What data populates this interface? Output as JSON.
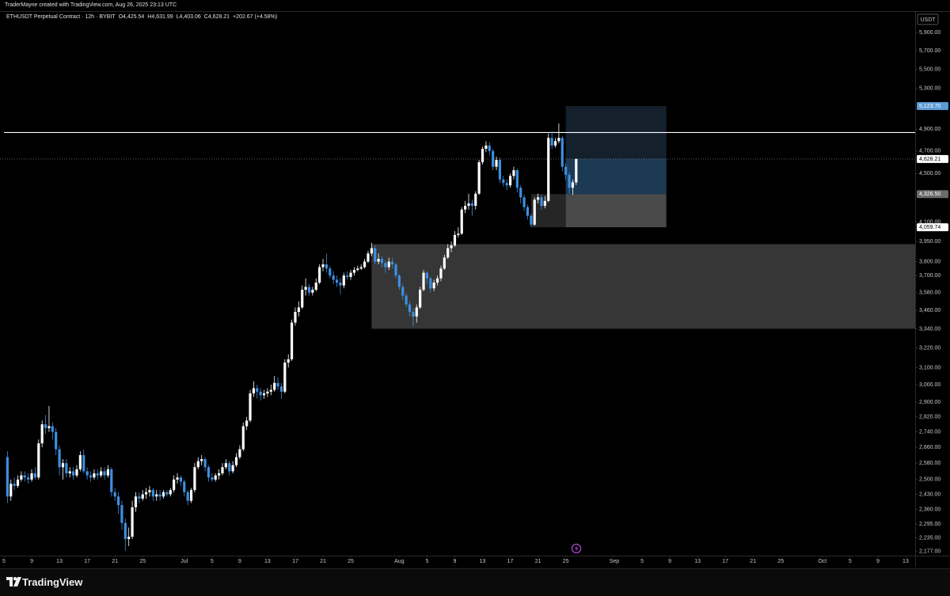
{
  "header": {
    "credit": "TraderMayne created with TradingView.com, Aug 26, 2025 23:13 UTC"
  },
  "chart_data": {
    "type": "candlestick",
    "title": "ETHUSDT Perpetual Contract · 12h · BYBIT",
    "ohlc": [
      "O4,425.54",
      "H4,631.99",
      "L4,403.06",
      "C4,628.21",
      "+202.67 (+4.58%)"
    ],
    "currency": "USDT",
    "up_color": "#ffffff",
    "down_color": "#3d8fe0",
    "log_scale": true,
    "xlim": [
      "2025-06-04T10:20",
      "2025-10-14T09:00"
    ],
    "ylim": [
      2160,
      6150
    ],
    "xticks": [
      {
        "value": "2025-06-05T00:00",
        "label": "5"
      },
      {
        "value": "2025-06-09T00:00",
        "label": "9"
      },
      {
        "value": "2025-06-13T00:00",
        "label": "13"
      },
      {
        "value": "2025-06-17T00:00",
        "label": "17"
      },
      {
        "value": "2025-06-21T00:00",
        "label": "21"
      },
      {
        "value": "2025-06-25T00:00",
        "label": "25"
      },
      {
        "value": "2025-07-01T00:00",
        "label": "Jul"
      },
      {
        "value": "2025-07-05T00:00",
        "label": "5"
      },
      {
        "value": "2025-07-09T00:00",
        "label": "9"
      },
      {
        "value": "2025-07-13T00:00",
        "label": "13"
      },
      {
        "value": "2025-07-17T00:00",
        "label": "17"
      },
      {
        "value": "2025-07-21T00:00",
        "label": "21"
      },
      {
        "value": "2025-07-25T00:00",
        "label": "25"
      },
      {
        "value": "2025-08-01T00:00",
        "label": "Aug"
      },
      {
        "value": "2025-08-05T00:00",
        "label": "5"
      },
      {
        "value": "2025-08-09T00:00",
        "label": "9"
      },
      {
        "value": "2025-08-13T00:00",
        "label": "13"
      },
      {
        "value": "2025-08-17T00:00",
        "label": "17"
      },
      {
        "value": "2025-08-21T00:00",
        "label": "21"
      },
      {
        "value": "2025-08-25T00:00",
        "label": "25"
      },
      {
        "value": "2025-09-01T00:00",
        "label": "Sep"
      },
      {
        "value": "2025-09-05T00:00",
        "label": "5"
      },
      {
        "value": "2025-09-09T00:00",
        "label": "9"
      },
      {
        "value": "2025-09-13T00:00",
        "label": "13"
      },
      {
        "value": "2025-09-17T00:00",
        "label": "17"
      },
      {
        "value": "2025-09-21T00:00",
        "label": "21"
      },
      {
        "value": "2025-09-25T00:00",
        "label": "25"
      },
      {
        "value": "2025-10-01T00:00",
        "label": "Oct"
      },
      {
        "value": "2025-10-05T00:00",
        "label": "5"
      },
      {
        "value": "2025-10-09T00:00",
        "label": "9"
      },
      {
        "value": "2025-10-13T00:00",
        "label": "13"
      }
    ],
    "yticks": [
      {
        "value": 5900,
        "label": "5,900.00"
      },
      {
        "value": 5700,
        "label": "5,700.00"
      },
      {
        "value": 5500,
        "label": "5,500.00"
      },
      {
        "value": 5300,
        "label": "5,300.00"
      },
      {
        "value": 4900,
        "label": "4,900.00"
      },
      {
        "value": 4700,
        "label": "4,700.00"
      },
      {
        "value": 4500,
        "label": "4,500.00"
      },
      {
        "value": 4100,
        "label": "4,100.00"
      },
      {
        "value": 3950,
        "label": "3,950.00"
      },
      {
        "value": 3800,
        "label": "3,800.00"
      },
      {
        "value": 3700,
        "label": "3,700.00"
      },
      {
        "value": 3580,
        "label": "3,580.00"
      },
      {
        "value": 3460,
        "label": "3,460.00"
      },
      {
        "value": 3340,
        "label": "3,340.00"
      },
      {
        "value": 3220,
        "label": "3,220.00"
      },
      {
        "value": 3100,
        "label": "3,100.00"
      },
      {
        "value": 3000,
        "label": "3,000.00"
      },
      {
        "value": 2900,
        "label": "2,900.00"
      },
      {
        "value": 2820,
        "label": "2,820.00"
      },
      {
        "value": 2740,
        "label": "2,740.00"
      },
      {
        "value": 2660,
        "label": "2,660.00"
      },
      {
        "value": 2580,
        "label": "2,580.00"
      },
      {
        "value": 2500,
        "label": "2,500.00"
      },
      {
        "value": 2430,
        "label": "2,430.00"
      },
      {
        "value": 2360,
        "label": "2,360.00"
      },
      {
        "value": 2295,
        "label": "2,295.00"
      },
      {
        "value": 2235,
        "label": "2,235.00"
      },
      {
        "value": 2177,
        "label": "2,177.00"
      }
    ],
    "x": [
      "2025-06-05T12:00",
      "2025-06-06T00:00",
      "2025-06-06T12:00",
      "2025-06-07T00:00",
      "2025-06-07T12:00",
      "2025-06-08T00:00",
      "2025-06-08T12:00",
      "2025-06-09T00:00",
      "2025-06-09T12:00",
      "2025-06-10T00:00",
      "2025-06-10T12:00",
      "2025-06-11T00:00",
      "2025-06-11T12:00",
      "2025-06-12T00:00",
      "2025-06-12T12:00",
      "2025-06-13T00:00",
      "2025-06-13T12:00",
      "2025-06-14T00:00",
      "2025-06-14T12:00",
      "2025-06-15T00:00",
      "2025-06-15T12:00",
      "2025-06-16T00:00",
      "2025-06-16T12:00",
      "2025-06-17T00:00",
      "2025-06-17T12:00",
      "2025-06-18T00:00",
      "2025-06-18T12:00",
      "2025-06-19T00:00",
      "2025-06-19T12:00",
      "2025-06-20T00:00",
      "2025-06-20T12:00",
      "2025-06-21T00:00",
      "2025-06-21T12:00",
      "2025-06-22T00:00",
      "2025-06-22T12:00",
      "2025-06-23T00:00",
      "2025-06-23T12:00",
      "2025-06-24T00:00",
      "2025-06-24T12:00",
      "2025-06-25T00:00",
      "2025-06-25T12:00",
      "2025-06-26T00:00",
      "2025-06-26T12:00",
      "2025-06-27T00:00",
      "2025-06-27T12:00",
      "2025-06-28T00:00",
      "2025-06-28T12:00",
      "2025-06-29T00:00",
      "2025-06-29T12:00",
      "2025-06-30T00:00",
      "2025-06-30T12:00",
      "2025-07-01T00:00",
      "2025-07-01T12:00",
      "2025-07-02T00:00",
      "2025-07-02T12:00",
      "2025-07-03T00:00",
      "2025-07-03T12:00",
      "2025-07-04T00:00",
      "2025-07-04T12:00",
      "2025-07-05T00:00",
      "2025-07-05T12:00",
      "2025-07-06T00:00",
      "2025-07-06T12:00",
      "2025-07-07T00:00",
      "2025-07-07T12:00",
      "2025-07-08T00:00",
      "2025-07-08T12:00",
      "2025-07-09T00:00",
      "2025-07-09T12:00",
      "2025-07-10T00:00",
      "2025-07-10T12:00",
      "2025-07-11T00:00",
      "2025-07-11T12:00",
      "2025-07-12T00:00",
      "2025-07-12T12:00",
      "2025-07-13T00:00",
      "2025-07-13T12:00",
      "2025-07-14T00:00",
      "2025-07-14T12:00",
      "2025-07-15T00:00",
      "2025-07-15T12:00",
      "2025-07-16T00:00",
      "2025-07-16T12:00",
      "2025-07-17T00:00",
      "2025-07-17T12:00",
      "2025-07-18T00:00",
      "2025-07-18T12:00",
      "2025-07-19T00:00",
      "2025-07-19T12:00",
      "2025-07-20T00:00",
      "2025-07-20T12:00",
      "2025-07-21T00:00",
      "2025-07-21T12:00",
      "2025-07-22T00:00",
      "2025-07-22T12:00",
      "2025-07-23T00:00",
      "2025-07-23T12:00",
      "2025-07-24T00:00",
      "2025-07-24T12:00",
      "2025-07-25T00:00",
      "2025-07-25T12:00",
      "2025-07-26T00:00",
      "2025-07-26T12:00",
      "2025-07-27T00:00",
      "2025-07-27T12:00",
      "2025-07-28T00:00",
      "2025-07-28T12:00",
      "2025-07-29T00:00",
      "2025-07-29T12:00",
      "2025-07-30T00:00",
      "2025-07-30T12:00",
      "2025-07-31T00:00",
      "2025-07-31T12:00",
      "2025-08-01T00:00",
      "2025-08-01T12:00",
      "2025-08-02T00:00",
      "2025-08-02T12:00",
      "2025-08-03T00:00",
      "2025-08-03T12:00",
      "2025-08-04T00:00",
      "2025-08-04T12:00",
      "2025-08-05T00:00",
      "2025-08-05T12:00",
      "2025-08-06T00:00",
      "2025-08-06T12:00",
      "2025-08-07T00:00",
      "2025-08-07T12:00",
      "2025-08-08T00:00",
      "2025-08-08T12:00",
      "2025-08-09T00:00",
      "2025-08-09T12:00",
      "2025-08-10T00:00",
      "2025-08-10T12:00",
      "2025-08-11T00:00",
      "2025-08-11T12:00",
      "2025-08-12T00:00",
      "2025-08-12T12:00",
      "2025-08-13T00:00",
      "2025-08-13T12:00",
      "2025-08-14T00:00",
      "2025-08-14T12:00",
      "2025-08-15T00:00",
      "2025-08-15T12:00",
      "2025-08-16T00:00",
      "2025-08-16T12:00",
      "2025-08-17T00:00",
      "2025-08-17T12:00",
      "2025-08-18T00:00",
      "2025-08-18T12:00",
      "2025-08-19T00:00",
      "2025-08-19T12:00",
      "2025-08-20T00:00",
      "2025-08-20T12:00",
      "2025-08-21T00:00",
      "2025-08-21T12:00",
      "2025-08-22T00:00",
      "2025-08-22T12:00",
      "2025-08-23T00:00",
      "2025-08-23T12:00",
      "2025-08-24T00:00",
      "2025-08-24T12:00",
      "2025-08-25T00:00",
      "2025-08-25T12:00",
      "2025-08-26T00:00",
      "2025-08-26T12:00"
    ],
    "open": [
      2610,
      2420,
      2480,
      2470,
      2500,
      2520,
      2510,
      2500,
      2530,
      2510,
      2680,
      2780,
      2760,
      2770,
      2740,
      2650,
      2560,
      2580,
      2530,
      2540,
      2520,
      2550,
      2620,
      2540,
      2520,
      2510,
      2530,
      2520,
      2540,
      2520,
      2550,
      2440,
      2420,
      2380,
      2300,
      2230,
      2240,
      2370,
      2420,
      2410,
      2430,
      2440,
      2450,
      2420,
      2430,
      2420,
      2440,
      2430,
      2450,
      2500,
      2510,
      2490,
      2440,
      2400,
      2450,
      2560,
      2590,
      2600,
      2560,
      2510,
      2500,
      2520,
      2530,
      2560,
      2580,
      2540,
      2570,
      2610,
      2650,
      2770,
      2800,
      2950,
      2980,
      2960,
      2940,
      2950,
      2960,
      2970,
      3010,
      2990,
      2960,
      3130,
      3150,
      3380,
      3450,
      3480,
      3600,
      3620,
      3580,
      3600,
      3650,
      3760,
      3780,
      3750,
      3700,
      3670,
      3650,
      3630,
      3700,
      3690,
      3720,
      3740,
      3750,
      3760,
      3800,
      3860,
      3900,
      3800,
      3820,
      3790,
      3760,
      3800,
      3780,
      3700,
      3620,
      3560,
      3500,
      3450,
      3420,
      3480,
      3600,
      3720,
      3680,
      3610,
      3650,
      3680,
      3750,
      3830,
      3900,
      3920,
      4000,
      4010,
      4200,
      4230,
      4250,
      4230,
      4330,
      4600,
      4720,
      4750,
      4700,
      4560,
      4620,
      4450,
      4420,
      4400,
      4480,
      4530,
      4380,
      4300,
      4220,
      4150,
      4080,
      4280,
      4300,
      4230,
      4270,
      4820,
      4750,
      4790,
      4820,
      4560,
      4490,
      4380,
      4425.54
    ],
    "high": [
      2640,
      2500,
      2510,
      2520,
      2540,
      2540,
      2530,
      2550,
      2560,
      2700,
      2800,
      2830,
      2880,
      2790,
      2760,
      2670,
      2600,
      2600,
      2560,
      2560,
      2570,
      2640,
      2650,
      2560,
      2540,
      2550,
      2550,
      2560,
      2560,
      2570,
      2560,
      2460,
      2440,
      2400,
      2320,
      2280,
      2400,
      2440,
      2440,
      2450,
      2460,
      2470,
      2460,
      2450,
      2450,
      2450,
      2450,
      2460,
      2520,
      2530,
      2520,
      2500,
      2450,
      2460,
      2580,
      2610,
      2620,
      2610,
      2570,
      2530,
      2530,
      2550,
      2580,
      2600,
      2590,
      2590,
      2630,
      2670,
      2790,
      2820,
      2970,
      3020,
      3000,
      2980,
      2970,
      2980,
      3000,
      3050,
      3040,
      3010,
      3150,
      3180,
      3400,
      3480,
      3520,
      3630,
      3680,
      3640,
      3620,
      3680,
      3780,
      3820,
      3860,
      3770,
      3730,
      3700,
      3680,
      3720,
      3730,
      3740,
      3760,
      3770,
      3780,
      3820,
      3880,
      3940,
      3920,
      3860,
      3840,
      3810,
      3830,
      3830,
      3790,
      3710,
      3640,
      3580,
      3520,
      3470,
      3500,
      3620,
      3740,
      3730,
      3690,
      3670,
      3700,
      3770,
      3850,
      3930,
      3950,
      4030,
      4060,
      4220,
      4270,
      4330,
      4280,
      4350,
      4620,
      4740,
      4790,
      4780,
      4720,
      4650,
      4640,
      4480,
      4450,
      4500,
      4560,
      4540,
      4400,
      4320,
      4240,
      4170,
      4300,
      4330,
      4320,
      4310,
      4860,
      4880,
      4820,
      4955,
      4840,
      4590,
      4510,
      4450,
      4631.99
    ],
    "low": [
      2390,
      2400,
      2450,
      2460,
      2490,
      2490,
      2480,
      2490,
      2500,
      2500,
      2660,
      2730,
      2740,
      2700,
      2620,
      2520,
      2500,
      2510,
      2510,
      2500,
      2510,
      2540,
      2530,
      2500,
      2490,
      2500,
      2500,
      2510,
      2500,
      2510,
      2420,
      2400,
      2340,
      2270,
      2180,
      2200,
      2230,
      2350,
      2390,
      2400,
      2410,
      2420,
      2400,
      2400,
      2400,
      2410,
      2420,
      2420,
      2440,
      2480,
      2470,
      2420,
      2380,
      2390,
      2440,
      2550,
      2570,
      2540,
      2490,
      2490,
      2490,
      2500,
      2520,
      2550,
      2520,
      2530,
      2560,
      2600,
      2640,
      2750,
      2790,
      2930,
      2920,
      2910,
      2920,
      2930,
      2940,
      2960,
      2970,
      2920,
      2950,
      3100,
      3140,
      3360,
      3420,
      3470,
      3560,
      3560,
      3560,
      3590,
      3640,
      3730,
      3720,
      3680,
      3640,
      3620,
      3570,
      3610,
      3670,
      3670,
      3700,
      3730,
      3740,
      3750,
      3790,
      3840,
      3780,
      3780,
      3760,
      3720,
      3740,
      3750,
      3680,
      3600,
      3530,
      3480,
      3420,
      3355,
      3380,
      3470,
      3590,
      3640,
      3580,
      3590,
      3630,
      3660,
      3740,
      3820,
      3870,
      3910,
      3980,
      4000,
      4170,
      4200,
      4150,
      4200,
      4320,
      4580,
      4690,
      4660,
      4530,
      4530,
      4420,
      4390,
      4360,
      4380,
      4450,
      4340,
      4250,
      4190,
      4120,
      4060,
      4070,
      4250,
      4200,
      4210,
      4260,
      4720,
      4730,
      4770,
      4520,
      4450,
      4330,
      4320,
      4403.06
    ],
    "close": [
      2420,
      2480,
      2470,
      2500,
      2520,
      2510,
      2500,
      2530,
      2510,
      2680,
      2780,
      2760,
      2770,
      2740,
      2650,
      2560,
      2580,
      2530,
      2540,
      2520,
      2550,
      2620,
      2540,
      2520,
      2510,
      2530,
      2520,
      2540,
      2520,
      2550,
      2440,
      2420,
      2380,
      2300,
      2230,
      2240,
      2370,
      2420,
      2410,
      2430,
      2440,
      2450,
      2420,
      2430,
      2420,
      2440,
      2430,
      2450,
      2500,
      2510,
      2490,
      2440,
      2400,
      2450,
      2560,
      2590,
      2600,
      2560,
      2510,
      2500,
      2520,
      2530,
      2560,
      2580,
      2540,
      2570,
      2610,
      2650,
      2770,
      2800,
      2950,
      2980,
      2960,
      2940,
      2950,
      2960,
      2970,
      3010,
      2990,
      2960,
      3130,
      3150,
      3380,
      3450,
      3480,
      3600,
      3620,
      3580,
      3600,
      3650,
      3760,
      3780,
      3750,
      3700,
      3670,
      3650,
      3630,
      3700,
      3690,
      3720,
      3740,
      3750,
      3760,
      3800,
      3860,
      3900,
      3800,
      3820,
      3790,
      3760,
      3800,
      3780,
      3700,
      3620,
      3560,
      3500,
      3450,
      3420,
      3480,
      3600,
      3720,
      3680,
      3610,
      3650,
      3680,
      3750,
      3830,
      3900,
      3920,
      4000,
      4010,
      4200,
      4230,
      4250,
      4230,
      4330,
      4600,
      4720,
      4750,
      4700,
      4560,
      4620,
      4450,
      4420,
      4400,
      4480,
      4530,
      4380,
      4300,
      4220,
      4150,
      4080,
      4280,
      4300,
      4230,
      4270,
      4820,
      4750,
      4790,
      4820,
      4560,
      4490,
      4380,
      4425.54,
      4628.21
    ],
    "hline": {
      "value": 4870,
      "color": "#ffffff"
    },
    "last_price": {
      "value": 4628.21,
      "label": "4,628.21"
    },
    "zones": [
      {
        "start": "2025-07-28T00:00",
        "end": "2025-10-14T09:00",
        "low": 3340,
        "high": 3930,
        "color": "#363636"
      },
      {
        "start": "2025-08-20T00:00",
        "end": "2025-08-25T00:00",
        "low": 4059.74,
        "high": 4326.5,
        "color": "#262626"
      }
    ],
    "position": {
      "start": "2025-08-25T00:00",
      "end": "2025-09-08T12:00",
      "target": {
        "value": 5123.7,
        "label": "5,123.70"
      },
      "entry": {
        "value": 4326.5,
        "label": "4,326.50"
      },
      "stop": {
        "value": 4059.74,
        "label": "4,059.74"
      },
      "target_color": "#14212d",
      "open_profit_color": "#1d3a55",
      "stop_color": "#4a4a4a"
    }
  },
  "footer": {
    "brand": "TradingView"
  }
}
